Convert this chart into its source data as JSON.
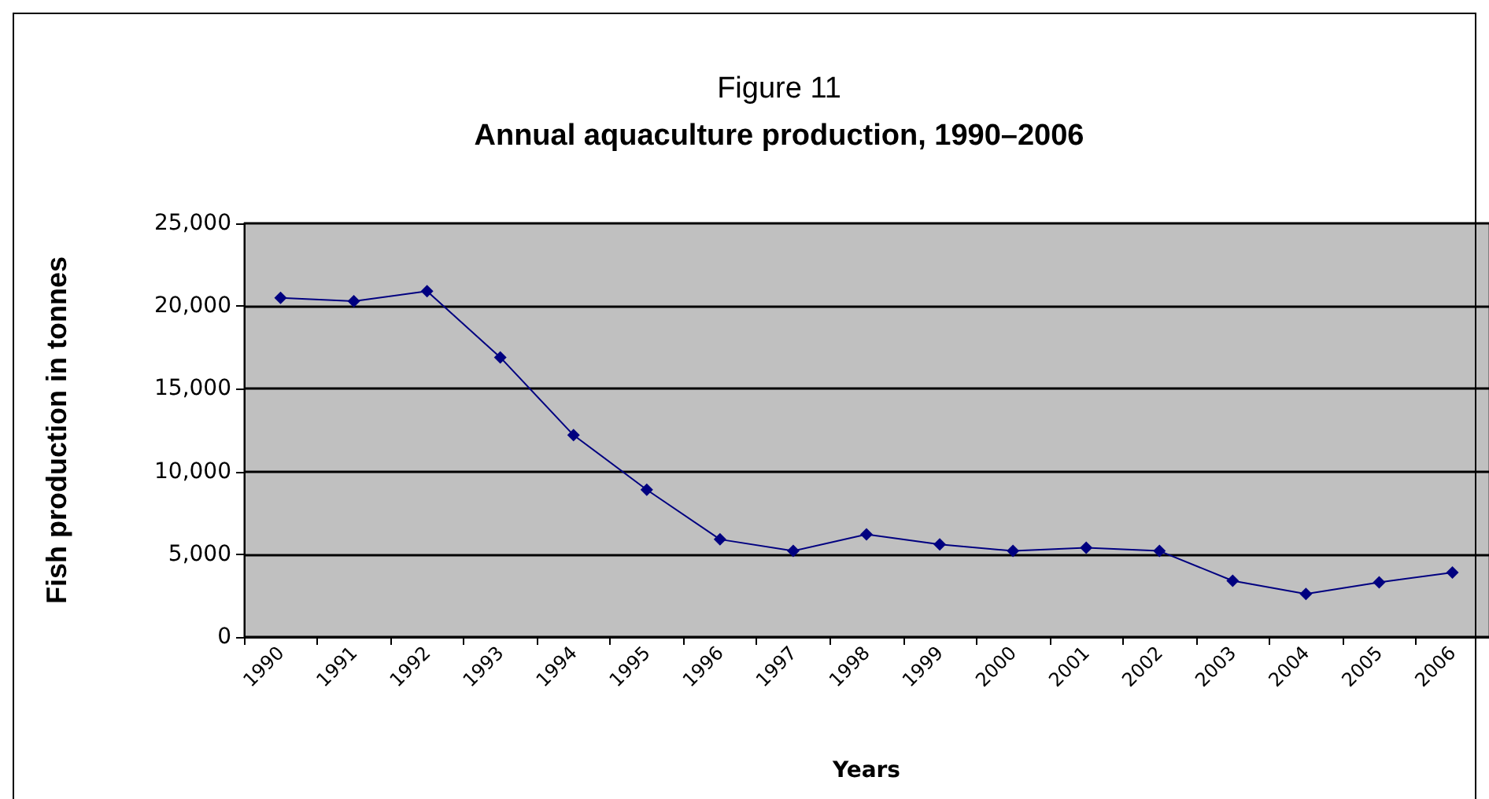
{
  "chart_data": {
    "type": "line",
    "title": "Figure 11",
    "subtitle": "Annual aquaculture production, 1990–2006",
    "xlabel": "Years",
    "ylabel": "Fish production in tonnes",
    "categories": [
      "1990",
      "1991",
      "1992",
      "1993",
      "1994",
      "1995",
      "1996",
      "1997",
      "1998",
      "1999",
      "2000",
      "2001",
      "2002",
      "2003",
      "2004",
      "2005",
      "2006"
    ],
    "series": [
      {
        "color": "#000080",
        "values": [
          20500,
          20300,
          20900,
          16900,
          12200,
          8900,
          5900,
          5200,
          6200,
          5600,
          5200,
          5400,
          5200,
          3400,
          2600,
          3300,
          3900
        ]
      }
    ],
    "ylim": [
      0,
      25000
    ],
    "yticks": [
      0,
      {
        "value": 5000,
        "label": "5,000"
      },
      {
        "value": 10000,
        "label": "10,000"
      },
      {
        "value": 15000,
        "label": "15,000"
      },
      {
        "value": 20000,
        "label": "20,000"
      },
      {
        "value": 25000,
        "label": "25,000"
      }
    ],
    "grid": "y",
    "marker": "diamond",
    "line_style": "solid"
  }
}
